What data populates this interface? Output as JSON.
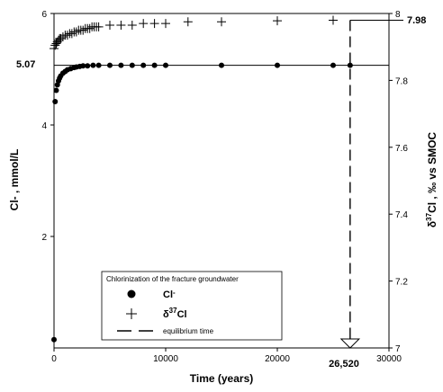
{
  "chart_data": {
    "type": "scatter",
    "title": "",
    "xlabel": "Time (years)",
    "ylabel_left": "Cl- , mmol/L",
    "ylabel_right": "δ37Cl , ‰ vs SMOC",
    "xlim": [
      0,
      30000
    ],
    "ylim_left": [
      0,
      6
    ],
    "ylim_right": [
      7,
      8
    ],
    "x_ticks": [
      0,
      10000,
      20000,
      30000
    ],
    "x_tick_labels": [
      "0",
      "10000",
      "20000",
      "30000"
    ],
    "left_ticks": [
      2,
      4,
      6
    ],
    "left_tick_labels": [
      "2",
      "4",
      "6"
    ],
    "right_ticks": [
      7,
      7.2,
      7.4,
      7.6,
      7.8,
      8
    ],
    "right_tick_labels": [
      "7",
      "7.2",
      "7.4",
      "7.6",
      "7.8",
      "8"
    ],
    "grid": false,
    "legend_placement": "bottom-center",
    "series": [
      {
        "name": "Cl-",
        "axis": "left",
        "marker": "filled-circle",
        "x": [
          0,
          100,
          200,
          300,
          400,
          500,
          600,
          800,
          1000,
          1200,
          1500,
          1800,
          2000,
          2300,
          2600,
          3000,
          3500,
          4000,
          5000,
          6000,
          7000,
          8000,
          9000,
          10000,
          15000,
          20000,
          25000,
          26520
        ],
        "y": [
          0.15,
          4.42,
          4.62,
          4.72,
          4.79,
          4.84,
          4.88,
          4.93,
          4.96,
          4.99,
          5.01,
          5.03,
          5.04,
          5.05,
          5.06,
          5.06,
          5.07,
          5.07,
          5.07,
          5.07,
          5.07,
          5.07,
          5.07,
          5.07,
          5.07,
          5.07,
          5.07,
          5.07
        ]
      },
      {
        "name": "δ37Cl",
        "axis": "right",
        "marker": "plus",
        "x": [
          0,
          100,
          200,
          300,
          400,
          500,
          600,
          800,
          1000,
          1200,
          1400,
          1600,
          1800,
          2000,
          2200,
          2400,
          2600,
          2800,
          3000,
          3200,
          3400,
          3600,
          3800,
          4000,
          5000,
          6000,
          7000,
          8000,
          9000,
          10000,
          12000,
          15000,
          20000,
          25000
        ],
        "y": [
          7.895,
          7.905,
          7.91,
          7.915,
          7.92,
          7.925,
          7.925,
          7.93,
          7.935,
          7.935,
          7.94,
          7.94,
          7.945,
          7.945,
          7.95,
          7.95,
          7.95,
          7.955,
          7.955,
          7.955,
          7.96,
          7.96,
          7.96,
          7.96,
          7.965,
          7.965,
          7.965,
          7.97,
          7.97,
          7.97,
          7.975,
          7.975,
          7.978,
          7.98
        ]
      }
    ],
    "reference_lines": {
      "cl_equilibrium": 5.07,
      "d37cl_equilibrium": 7.98,
      "equilibrium_time": 26520
    },
    "annotations": {
      "cl_value": "5.07",
      "d37cl_value": "7.98",
      "time_value": "26,520"
    },
    "legend": {
      "title": "Chlorinization of the fracture groundwater",
      "cl_label": "Cl",
      "cl_superscript": "-",
      "d37_label": "δ37Cl",
      "d37_prefix": "δ",
      "d37_superscript": "37",
      "d37_suffix": "Cl",
      "eq_label": "equilibrium time"
    }
  }
}
